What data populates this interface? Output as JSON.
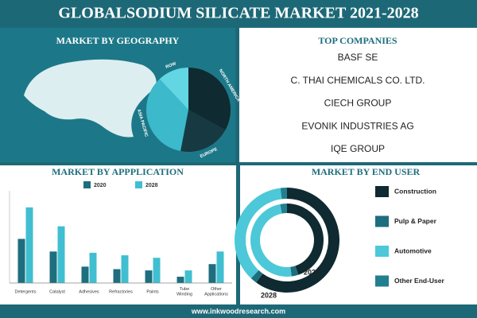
{
  "header": {
    "title": "GLOBALSODIUM SILICATE MARKET 2021-2028"
  },
  "companies": {
    "title": "TOP COMPANIES",
    "items": [
      "BASF SE",
      "C. THAI CHEMICALS CO. LTD.",
      "CIECH GROUP",
      "EVONIK INDUSTRIES AG",
      "IQE GROUP"
    ]
  },
  "footer": {
    "url": "www.inkwoodresearch.com"
  },
  "chart_data": [
    {
      "type": "pie",
      "title": "MARKET BY GEOGRAPHY",
      "categories": [
        "NORTH AMERICA",
        "EUROPE",
        "ASIA PACIFIC",
        "ROW"
      ],
      "values": [
        33,
        20,
        35,
        12
      ],
      "colors": [
        "#0f2a30",
        "#173a42",
        "#3cb9ca",
        "#62d6e3"
      ]
    },
    {
      "type": "bar",
      "title": "MARKET BY APPPLICATION",
      "categories": [
        "Detergents",
        "Catalyst",
        "Adhesives",
        "Refractories",
        "Paints",
        "Tube Winding",
        "Other Applications"
      ],
      "series": [
        {
          "name": "2020",
          "color": "#1d6e7e",
          "values": [
            35,
            25,
            13,
            11,
            10,
            5,
            15
          ]
        },
        {
          "name": "2028",
          "color": "#40bfd0",
          "values": [
            60,
            45,
            24,
            22,
            20,
            10,
            25
          ]
        }
      ],
      "ylim": [
        0,
        70
      ]
    },
    {
      "type": "donut",
      "title": "MARKET BY END USER",
      "categories": [
        "Construction",
        "Pulp & Paper",
        "Automotive",
        "Other End-User"
      ],
      "colors": [
        "#0f2a30",
        "#1d6e7e",
        "#4cc8d8",
        "#227f90"
      ],
      "series": [
        {
          "name": "2020",
          "values": [
            45,
            3,
            49,
            3
          ]
        },
        {
          "name": "2028",
          "values": [
            60,
            2,
            36,
            2
          ]
        }
      ]
    }
  ]
}
